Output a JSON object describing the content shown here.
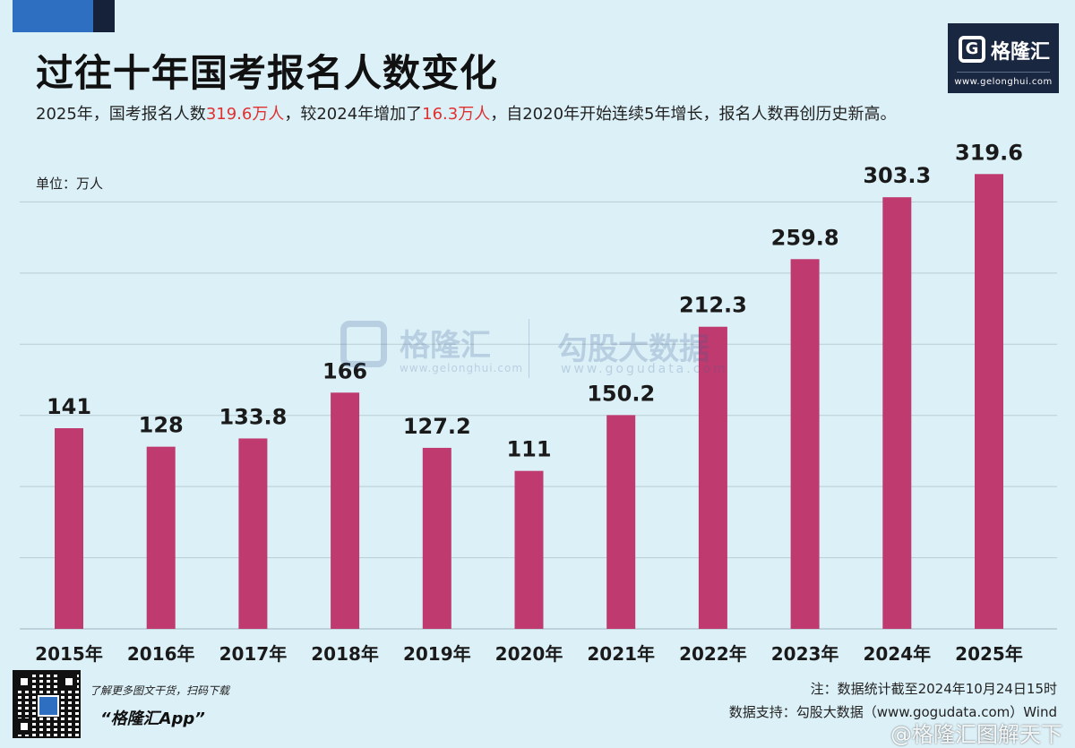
{
  "header": {
    "title": "过往十年国考报名人数变化",
    "subtitle_prefix": "2025年，国考报名人数",
    "subtitle_hl1": "319.6万人",
    "subtitle_mid": "，较2024年增加了",
    "subtitle_hl2": "16.3万人",
    "subtitle_suffix": "，自2020年开始连续5年增长，报名人数再创历史新高。"
  },
  "logo": {
    "name": "格隆汇",
    "url": "www.gelonghui.com"
  },
  "watermark": {
    "name1": "格隆汇",
    "url1": "www.gelonghui.com",
    "name2": "勾股大数据",
    "url2": "www.gogudata.com"
  },
  "unit": "单位：万人",
  "chart_data": {
    "type": "bar",
    "title": "过往十年国考报名人数变化",
    "ylabel": "万人",
    "xlabel": "",
    "categories": [
      "2015年",
      "2016年",
      "2017年",
      "2018年",
      "2019年",
      "2020年",
      "2021年",
      "2022年",
      "2023年",
      "2024年",
      "2025年"
    ],
    "values": [
      141,
      128,
      133.8,
      166,
      127.2,
      111,
      150.2,
      212.3,
      259.8,
      303.3,
      319.6
    ],
    "value_labels": [
      "141",
      "128",
      "133.8",
      "166",
      "127.2",
      "111",
      "150.2",
      "212.3",
      "259.8",
      "303.3",
      "319.6"
    ],
    "ylim": [
      0,
      350
    ],
    "grid": true,
    "legend": "none",
    "bar_color": "#bf3a6e"
  },
  "footer": {
    "promo_line1": "了解更多图文干货，扫码下载",
    "promo_line2": "“格隆汇App”",
    "note": "注：数据统计截至2024年10月24日15时",
    "source": "数据支持：勾股大数据（www.gogudata.com）Wind",
    "weibo": "@格隆汇图解天下"
  }
}
